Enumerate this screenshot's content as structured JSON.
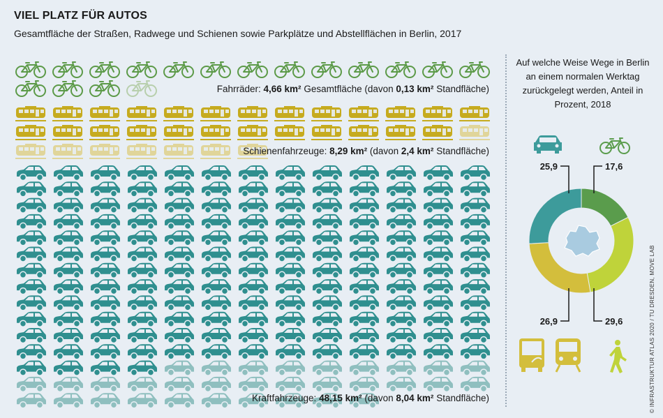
{
  "title": "VIEL PLATZ FÜR AUTOS",
  "subtitle": "Gesamtfläche der Straßen, Radwege und Schienen sowie Parkplätze und Abstellflächen in Berlin, 2017",
  "labels": {
    "bikes": {
      "prefix": "Fahrräder: ",
      "total": "4,66 km²",
      "mid": " Gesamtfläche (davon ",
      "parked": "0,13 km²",
      "suffix": " Standfläche)"
    },
    "rail": {
      "prefix": "Schienenfahrzeuge: ",
      "total": "8,29 km²",
      "mid": " (davon ",
      "parked": "2,4 km²",
      "suffix": " Standfläche)"
    },
    "cars": {
      "prefix": "Kraftfahrzeuge: ",
      "total": "48,15 km²",
      "mid": " (davon ",
      "parked": "8,04 km²",
      "suffix": " Standfläche)"
    }
  },
  "right_heading": "Auf welche Weise Wege in Berlin an einem normalen Werktag zurückgelegt werden, Anteil in Prozent, 2018",
  "source": "© INFRASTRUKTUR ATLAS 2020 / TU DRESDEN, MOVE LAB",
  "colors": {
    "bike": "#5c9a48",
    "bike_light": "#b8cfad",
    "rail": "#c6ab1f",
    "rail_light": "#e0d59a",
    "car": "#2f8f8f",
    "car_light": "#8fbfbf",
    "seg_car": "#3d9b9b",
    "seg_bike": "#5a9c4c",
    "seg_walk": "#bfd33a",
    "seg_transit": "#d3be3c",
    "berlin": "#a9cbe0"
  },
  "icons": [
    "car-icon",
    "bicycle-icon",
    "bus-icon",
    "tram-icon",
    "pedestrian-icon",
    "berlin-map-icon"
  ],
  "chart_data": [
    {
      "type": "pictogram",
      "title": "VIEL PLATZ FÜR AUTOS",
      "subtitle": "Gesamtfläche der Straßen, Radwege und Schienen sowie Parkplätze und Abstellflächen in Berlin, 2017",
      "unit": "km²",
      "series": [
        {
          "name": "Fahrräder",
          "total": 4.66,
          "parked": 0.13,
          "icons_full": 16,
          "icons_light": 1
        },
        {
          "name": "Schienenfahrzeuge",
          "total": 8.29,
          "parked": 2.4,
          "icons_full": 25,
          "icons_light": 8
        },
        {
          "name": "Kraftfahrzeuge",
          "total": 48.15,
          "parked": 8.04,
          "icons_full": 160,
          "icons_light": 32
        }
      ]
    },
    {
      "type": "pie",
      "title": "Auf welche Weise Wege in Berlin an einem normalen Werktag zurückgelegt werden, Anteil in Prozent, 2018",
      "unit": "%",
      "slices": [
        {
          "mode": "car",
          "value": 25.9
        },
        {
          "mode": "bicycle",
          "value": 17.6
        },
        {
          "mode": "walking",
          "value": 29.6
        },
        {
          "mode": "public transport",
          "value": 26.9
        }
      ]
    }
  ]
}
